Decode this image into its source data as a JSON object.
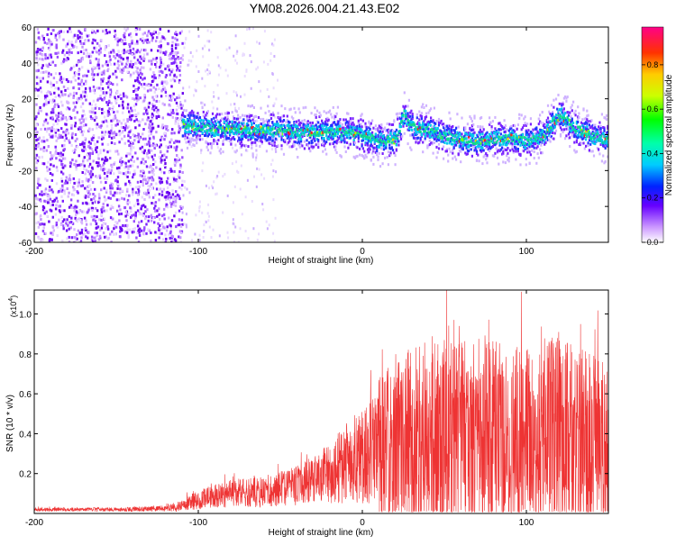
{
  "title": "YM08.2026.004.21.43.E02",
  "colors": {
    "snr_line": "#ee3333",
    "axis": "#000000",
    "spectral_core": "#00ccee",
    "spectral_peak": "#ff2222"
  },
  "chart_data": [
    {
      "type": "heatmap",
      "xlabel": "Height of straight line (km)",
      "ylabel": "Frequency (Hz)",
      "xlim": [
        -200,
        150
      ],
      "ylim": [
        -60,
        60
      ],
      "x_ticks": [
        {
          "value": -200,
          "label": "-200"
        },
        {
          "value": -100,
          "label": "-100"
        },
        {
          "value": 0,
          "label": "0"
        },
        {
          "value": 100,
          "label": "100"
        }
      ],
      "y_ticks": [
        {
          "value": 60,
          "label": "60"
        },
        {
          "value": 40,
          "label": "40"
        },
        {
          "value": 20,
          "label": "20"
        },
        {
          "value": 0,
          "label": "0"
        },
        {
          "value": -20,
          "label": "-20"
        },
        {
          "value": -40,
          "label": "-40"
        },
        {
          "value": -60,
          "label": "-60"
        }
      ],
      "colorbar": {
        "label": "Normalized spectral amplitude",
        "range": [
          0,
          0.97
        ],
        "ticks": [
          {
            "value": 0.0,
            "label": "0.0"
          },
          {
            "value": 0.2,
            "label": "0.2"
          },
          {
            "value": 0.4,
            "label": "0.4"
          },
          {
            "value": 0.6,
            "label": "0.6"
          },
          {
            "value": 0.8,
            "label": "0.8"
          }
        ]
      },
      "noise_region_x": [
        -200,
        -110
      ],
      "ridge": {
        "x": [
          -110,
          -100,
          -90,
          -80,
          -70,
          -60,
          -50,
          -40,
          -30,
          -20,
          -10,
          0,
          10,
          20,
          25,
          30,
          40,
          50,
          60,
          70,
          80,
          90,
          100,
          110,
          120,
          130,
          140,
          150
        ],
        "freq": [
          6,
          5,
          4,
          4,
          3,
          3,
          3,
          2,
          2,
          2,
          2,
          0,
          -3,
          -2,
          12,
          5,
          3,
          0,
          -2,
          -3,
          -2,
          -1,
          -3,
          0,
          12,
          4,
          0,
          -3
        ]
      }
    },
    {
      "type": "line",
      "xlabel": "Height of straight line (km)",
      "ylabel": "SNR (10 * v/v)",
      "y_multiplier": "(x10",
      "y_exponent": "4",
      "xlim": [
        -200,
        150
      ],
      "ylim": [
        0,
        1.12
      ],
      "x_ticks": [
        {
          "value": -200,
          "label": "-200"
        },
        {
          "value": -100,
          "label": "-100"
        },
        {
          "value": 0,
          "label": "0"
        },
        {
          "value": 100,
          "label": "100"
        }
      ],
      "y_ticks": [
        {
          "value": 0.2,
          "label": "0.2"
        },
        {
          "value": 0.4,
          "label": "0.4"
        },
        {
          "value": 0.6,
          "label": "0.6"
        },
        {
          "value": 0.8,
          "label": "0.8"
        },
        {
          "value": 1.0,
          "label": "1.0"
        }
      ],
      "envelope": {
        "x": [
          -200,
          -150,
          -120,
          -110,
          -100,
          -80,
          -60,
          -40,
          -30,
          -20,
          -10,
          0,
          10,
          20,
          40,
          60,
          80,
          100,
          120,
          130,
          150
        ],
        "mean": [
          0.02,
          0.02,
          0.025,
          0.04,
          0.07,
          0.1,
          0.11,
          0.14,
          0.17,
          0.2,
          0.25,
          0.3,
          0.33,
          0.35,
          0.37,
          0.38,
          0.38,
          0.37,
          0.36,
          0.35,
          0.34
        ],
        "spread": [
          0.01,
          0.01,
          0.015,
          0.03,
          0.05,
          0.07,
          0.08,
          0.1,
          0.12,
          0.15,
          0.2,
          0.25,
          0.35,
          0.45,
          0.5,
          0.5,
          0.5,
          0.48,
          0.55,
          0.5,
          0.42
        ]
      }
    }
  ]
}
